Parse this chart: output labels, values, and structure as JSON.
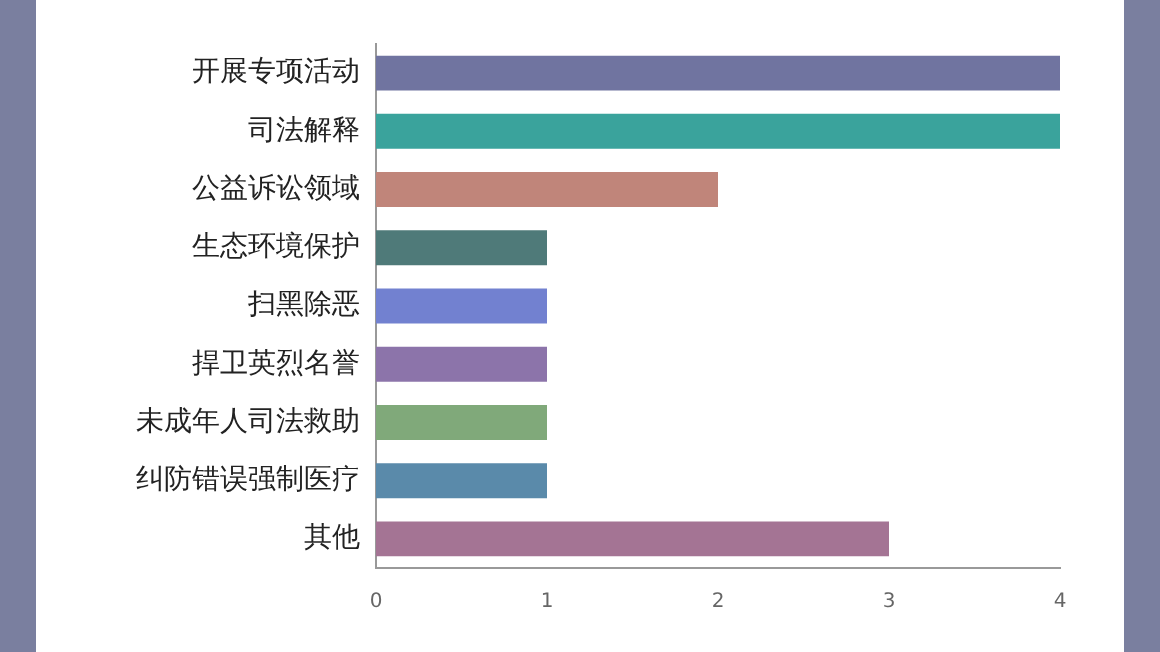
{
  "chart_data": {
    "type": "bar",
    "orientation": "horizontal",
    "categories": [
      "开展专项活动",
      "司法解释",
      "公益诉讼领域",
      "生态环境保护",
      "扫黑除恶",
      "捍卫英烈名誉",
      "未成年人司法救助",
      "纠防错误强制医疗",
      "其他"
    ],
    "values": [
      4,
      4,
      2,
      1,
      1,
      1,
      1,
      1,
      3
    ],
    "colors": [
      "#7074a0",
      "#3aa39c",
      "#c0857a",
      "#4f7a79",
      "#7281d0",
      "#8c74aa",
      "#80a97a",
      "#5a8aaa",
      "#a47494"
    ],
    "xlim": [
      0,
      4
    ],
    "xticks": [
      0,
      1,
      2,
      3,
      4
    ],
    "grid": false,
    "legend": false
  }
}
